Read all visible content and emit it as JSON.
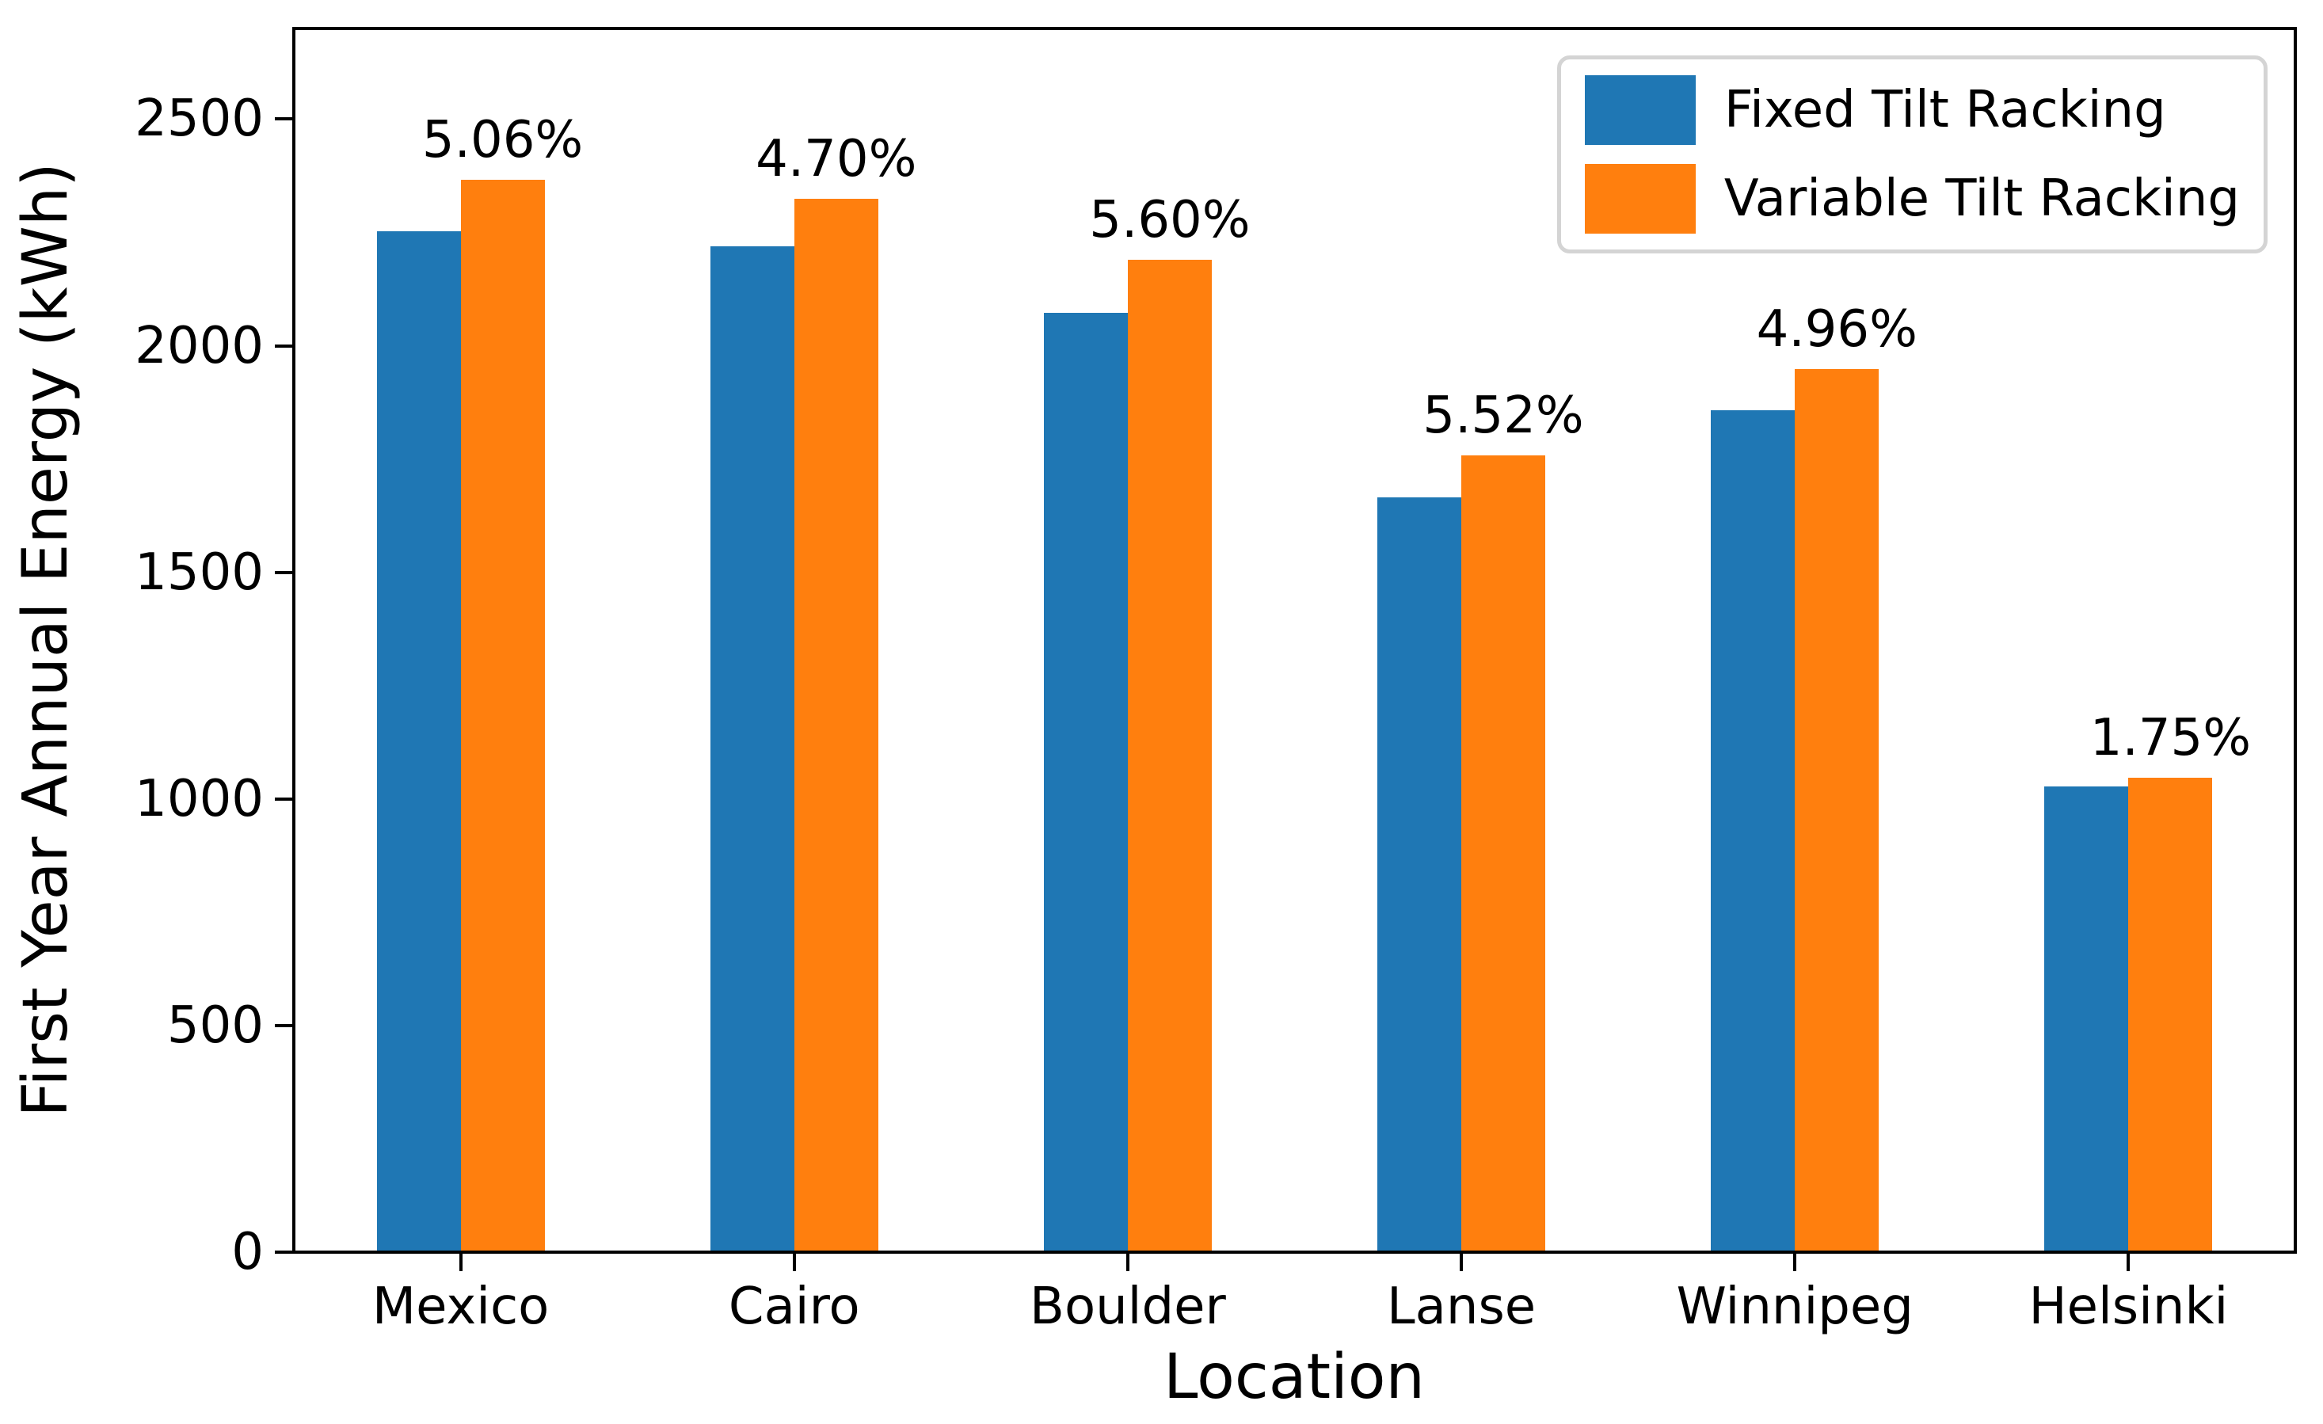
{
  "chart_data": {
    "type": "bar",
    "title": "",
    "xlabel": "Location",
    "ylabel": "First Year Annual Energy (kWh)",
    "categories": [
      "Mexico",
      "Cairo",
      "Boulder",
      "Lanse",
      "Winnipeg",
      "Helsinki"
    ],
    "series": [
      {
        "name": "Fixed Tilt Racking",
        "color": "#1f77b4",
        "values": [
          2253,
          2220,
          2073,
          1666,
          1857,
          1028
        ]
      },
      {
        "name": "Variable Tilt Racking",
        "color": "#ff7f0e",
        "values": [
          2367,
          2324,
          2189,
          1758,
          1949,
          1046
        ]
      }
    ],
    "annotations": [
      "5.06%",
      "4.70%",
      "5.60%",
      "5.52%",
      "4.96%",
      "1.75%"
    ],
    "y_ticks": [
      0,
      500,
      1000,
      1500,
      2000,
      2500
    ],
    "ylim": [
      0,
      2700
    ],
    "grid": false,
    "legend_position": "upper right"
  },
  "legend": {
    "items": [
      {
        "label": "Fixed Tilt Racking",
        "color": "#1f77b4"
      },
      {
        "label": "Variable Tilt Racking",
        "color": "#ff7f0e"
      }
    ]
  },
  "colors": {
    "background": "#ffffff",
    "axis": "#000000",
    "text": "#000000",
    "legend_border": "#d4d4d4"
  }
}
